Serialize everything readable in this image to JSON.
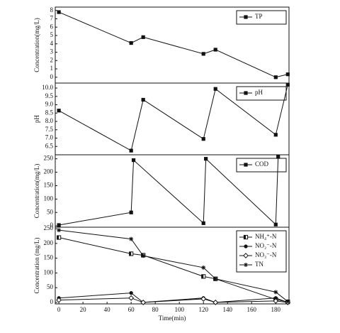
{
  "chart_data": [
    {
      "type": "line",
      "ylabel": "Concentration(mg/L)",
      "xlim": [
        -3,
        191
      ],
      "ylim": [
        -0.7,
        8.4
      ],
      "yticks": [
        0,
        1,
        2,
        3,
        4,
        5,
        6,
        7,
        8
      ],
      "legend": "upper right",
      "x": [
        0,
        60,
        70,
        120,
        130,
        180,
        190
      ],
      "series": [
        {
          "name": "TP",
          "color": "#111111",
          "marker": "square",
          "values": [
            7.8,
            4.1,
            4.8,
            2.8,
            3.3,
            0,
            0.35
          ]
        }
      ]
    },
    {
      "type": "line",
      "ylabel": "pH",
      "xlim": [
        -3,
        191
      ],
      "ylim": [
        6.0,
        10.3
      ],
      "yticks": [
        {
          "value": 6.5,
          "label": "6.5"
        },
        {
          "value": 7,
          "label": "7.0"
        },
        {
          "value": 7.5,
          "label": "7.5"
        },
        {
          "value": 8,
          "label": "8.0"
        },
        {
          "value": 8.5,
          "label": "8.5"
        },
        {
          "value": 9,
          "label": "9.0"
        },
        {
          "value": 9.5,
          "label": "9.5"
        },
        {
          "value": 10,
          "label": "10.0"
        }
      ],
      "legend": "upper right",
      "x": [
        0,
        60,
        70,
        120,
        130,
        180,
        190
      ],
      "series": [
        {
          "name": "pH",
          "color": "#111111",
          "marker": "square",
          "values": [
            8.65,
            6.25,
            9.3,
            6.95,
            9.95,
            7.2,
            10.2
          ]
        }
      ]
    },
    {
      "type": "line",
      "ylabel": "Concentration(mg/L)",
      "xlim": [
        -3,
        191
      ],
      "ylim": [
        -5,
        265
      ],
      "yticks": [
        0,
        50,
        100,
        150,
        200,
        250
      ],
      "legend": "upper right",
      "x": [
        0,
        60,
        62,
        120,
        122,
        180,
        182
      ],
      "series": [
        {
          "name": "COD",
          "color": "#111111",
          "marker": "square",
          "values": [
            3,
            50,
            245,
            10,
            250,
            5,
            257
          ]
        }
      ]
    },
    {
      "type": "line",
      "ylabel": "Concentration (mg/L)",
      "xlabel": "Time(min)",
      "xlim": [
        -3,
        191
      ],
      "xticks": [
        0,
        20,
        40,
        60,
        80,
        100,
        120,
        140,
        160,
        180
      ],
      "ylim": [
        -5,
        255
      ],
      "yticks": [
        0,
        50,
        100,
        150,
        200,
        250
      ],
      "legend": "upper right",
      "x": [
        0,
        60,
        70,
        120,
        130,
        180,
        190
      ],
      "series": [
        {
          "name": "NH₄⁺-N",
          "color": "#111111",
          "marker": "half-square",
          "values": [
            220,
            165,
            160,
            88,
            80,
            10,
            2
          ]
        },
        {
          "name": "NO₂⁻-N",
          "color": "#111111",
          "marker": "circle",
          "values": [
            15,
            32,
            0,
            15,
            0,
            15,
            0
          ]
        },
        {
          "name": "NO₃⁻-N",
          "color": "#111111",
          "marker": "diamond",
          "values": [
            8,
            15,
            0,
            12,
            0,
            5,
            0
          ]
        },
        {
          "name": "TN",
          "color": "#111111",
          "marker": "star",
          "values": [
            245,
            215,
            158,
            118,
            80,
            35,
            3
          ]
        }
      ]
    }
  ]
}
